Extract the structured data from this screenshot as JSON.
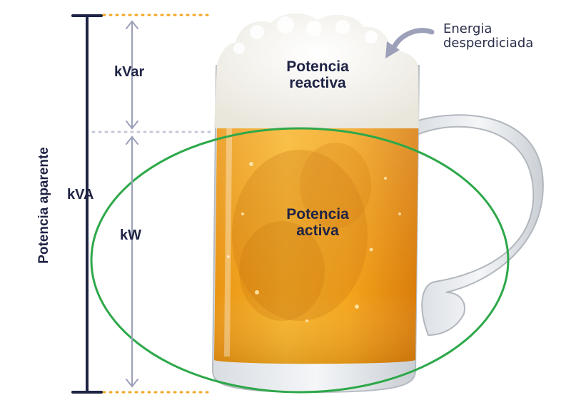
{
  "labels": {
    "vertical_title": "Potencia aparente",
    "kva": "kVA",
    "kvar": "kVar",
    "kw": "kW",
    "reactive_line1": "Potencia",
    "reactive_line2": "reactiva",
    "active_line1": "Potencia",
    "active_line2": "activa",
    "note_line1": "Energia",
    "note_line2": "desperdiciada"
  },
  "colors": {
    "navy": "#1e2344",
    "dotted_orange": "#f5a623",
    "dotted_gray": "#c5c8d6",
    "arrow_gray": "#9ca0b8",
    "ellipse_green": "#2ea84a",
    "beer_light": "#f7b52b",
    "beer_dark": "#d97c0a",
    "foam": "#fbfbf8"
  }
}
